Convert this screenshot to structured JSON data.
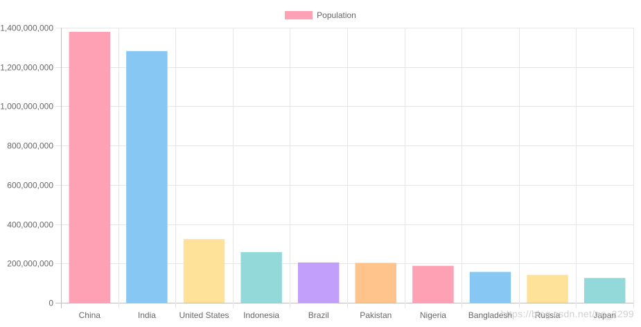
{
  "chart_data": {
    "type": "bar",
    "legend": {
      "label": "Population",
      "color": "#ffa1b5"
    },
    "categories": [
      "China",
      "India",
      "United States",
      "Indonesia",
      "Brazil",
      "Pakistan",
      "Nigeria",
      "Bangladesh",
      "Russia",
      "Japan"
    ],
    "series": [
      {
        "name": "Population",
        "values": [
          1379000000,
          1281000000,
          324000000,
          258000000,
          205000000,
          203000000,
          188000000,
          157000000,
          142000000,
          126000000
        ]
      }
    ],
    "colors": [
      "#ffa1b5",
      "#86c7f3",
      "#ffe29a",
      "#93d9d9",
      "#c29ffa",
      "#ffc48c",
      "#ffa1b5",
      "#86c7f3",
      "#ffe29a",
      "#93d9d9"
    ],
    "ylim": [
      0,
      1400000000
    ],
    "yticks": [
      "0",
      "200,000,000",
      "400,000,000",
      "600,000,000",
      "800,000,000",
      "1,000,000,000",
      "1,200,000,000",
      "1,400,000,000"
    ],
    "grid": true,
    "legend_position": "top"
  },
  "watermark": "https://blog.csdn.net/qq_2299"
}
